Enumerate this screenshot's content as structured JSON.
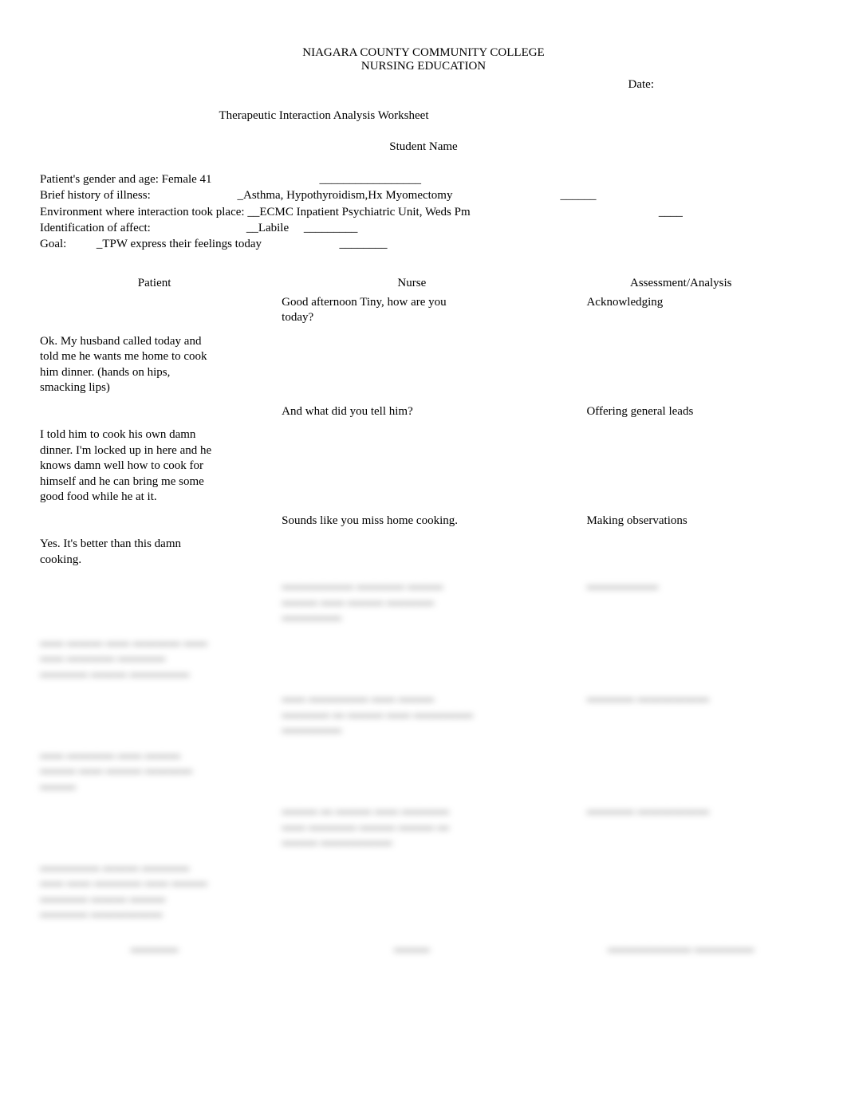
{
  "header": {
    "line1": "NIAGARA COUNTY COMMUNITY COLLEGE",
    "line2": "NURSING EDUCATION",
    "date_label": "Date:",
    "worksheet_title": "Therapeutic Interaction Analysis Worksheet",
    "student_name_label": "Student Name"
  },
  "info": {
    "gender_age": "Patient's gender and age: Female 41                                    _________________",
    "history": "Brief history of illness:                             _Asthma, Hypothyroidism,Hx Myomectomy                                    ______",
    "environment": "Environment where interaction took place: __ECMC Inpatient Psychiatric Unit, Weds Pm                                                               ____",
    "affect": "Identification of affect:                                __Labile     _________",
    "goal": "Goal:          _TPW express their feelings today                          ________"
  },
  "columns": {
    "patient": "Patient",
    "nurse": "Nurse",
    "analysis": "Assessment/Analysis"
  },
  "rows": [
    {
      "patient": "",
      "nurse": "Good afternoon Tiny, how are you today?",
      "analysis": "Acknowledging"
    },
    {
      "patient": "Ok.      My husband called today and told me he wants me home to cook him dinner. (hands on hips, smacking lips)",
      "nurse": "",
      "analysis": ""
    },
    {
      "patient": "",
      "nurse": "And what did you tell him?",
      "analysis": "Offering general leads"
    },
    {
      "patient": "I told him to cook his own damn dinner.          I'm locked up in here and he knows damn well how to cook for himself and he can bring me some good food while he at it.",
      "nurse": "",
      "analysis": ""
    },
    {
      "patient": "",
      "nurse": "Sounds like you miss home cooking.",
      "analysis": "Making observations"
    },
    {
      "patient": "Yes. It's better than this damn cooking.",
      "nurse": "",
      "analysis": ""
    }
  ],
  "blurred_rows": [
    {
      "patient": "",
      "nurse": "▬▬▬▬▬▬   ▬▬▬▬ ▬▬▬ ▬▬▬ ▬▬ ▬▬▬ ▬▬▬▬ ▬▬▬▬▬",
      "analysis": "▬▬▬▬▬▬"
    },
    {
      "patient": "▬▬ ▬▬▬ ▬▬ ▬▬▬▬ ▬▬ ▬▬ ▬▬▬▬ ▬▬▬▬   ▬▬▬▬ ▬▬▬ ▬▬▬▬▬",
      "nurse": "",
      "analysis": ""
    },
    {
      "patient": "",
      "nurse": "▬▬ ▬▬▬▬▬ ▬▬ ▬▬▬ ▬▬▬▬ ▬ ▬▬▬ ▬▬ ▬▬▬▬▬ ▬▬▬▬▬",
      "analysis": "▬▬▬▬ ▬▬▬▬▬▬"
    },
    {
      "patient": "▬▬ ▬▬▬▬ ▬▬ ▬▬▬ ▬▬▬ ▬▬ ▬▬▬  ▬▬▬▬ ▬▬▬",
      "nurse": "",
      "analysis": ""
    },
    {
      "patient": "",
      "nurse": "▬▬▬ ▬ ▬▬▬ ▬▬ ▬▬▬▬ ▬▬ ▬▬▬▬ ▬▬▬ ▬▬▬ ▬ ▬▬▬ ▬▬▬▬▬▬",
      "analysis": "▬▬▬▬ ▬▬▬▬▬▬"
    },
    {
      "patient": "▬▬▬▬▬ ▬▬▬ ▬▬▬▬ ▬▬ ▬▬ ▬▬▬▬ ▬▬ ▬▬▬ ▬▬▬▬ ▬▬▬ ▬▬▬ ▬▬▬▬ ▬▬▬▬▬▬",
      "nurse": "",
      "analysis": ""
    }
  ],
  "footer_columns": {
    "patient": "▬▬▬▬",
    "nurse": "▬▬▬",
    "analysis": "▬▬▬▬▬▬▬ ▬▬▬▬▬"
  }
}
